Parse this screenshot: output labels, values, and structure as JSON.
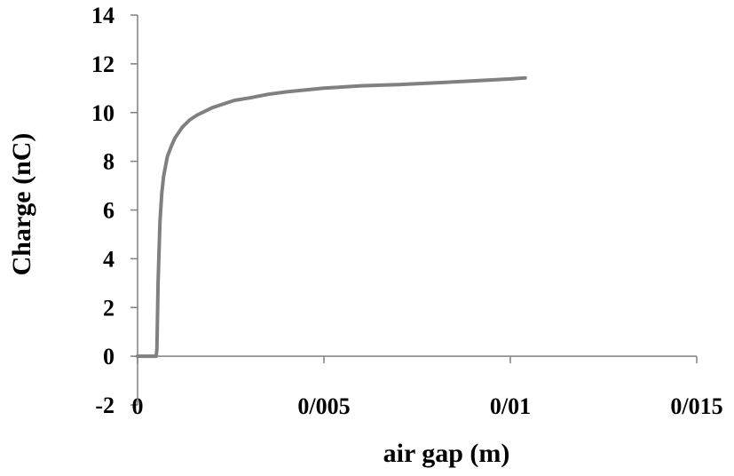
{
  "chart_data": {
    "type": "line",
    "title": "",
    "xlabel": "air gap (m)",
    "ylabel": "Charge (nC)",
    "xlim": [
      0,
      0.015
    ],
    "ylim": [
      -2,
      14
    ],
    "x_ticks": [
      0,
      0.005,
      0.01,
      0.015
    ],
    "x_tick_labels": [
      "0",
      "0/005",
      "0/01",
      "0/015"
    ],
    "y_ticks": [
      -2,
      0,
      2,
      4,
      6,
      8,
      10,
      12,
      14
    ],
    "y_tick_labels": [
      "-2",
      "0",
      "2",
      "4",
      "6",
      "8",
      "10",
      "12",
      "14"
    ],
    "grid": false,
    "series": [
      {
        "color": "#808080",
        "x": [
          0,
          0.0005,
          0.00052,
          0.00055,
          0.0006,
          0.00065,
          0.0007,
          0.0008,
          0.0009,
          0.001,
          0.0012,
          0.0014,
          0.0016,
          0.0018,
          0.002,
          0.0023,
          0.0026,
          0.003,
          0.0035,
          0.004,
          0.005,
          0.006,
          0.007,
          0.008,
          0.009,
          0.01,
          0.0104
        ],
        "y": [
          0,
          0,
          0.3,
          3.0,
          5.5,
          6.7,
          7.4,
          8.2,
          8.6,
          8.95,
          9.4,
          9.7,
          9.9,
          10.05,
          10.2,
          10.35,
          10.5,
          10.6,
          10.75,
          10.85,
          11.0,
          11.1,
          11.15,
          11.22,
          11.3,
          11.38,
          11.42
        ]
      }
    ]
  }
}
